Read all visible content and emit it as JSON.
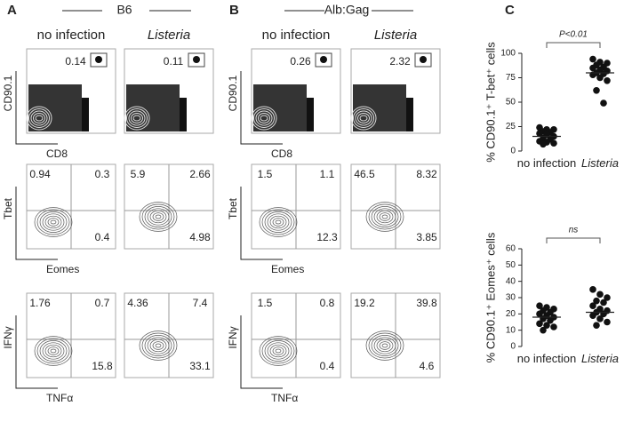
{
  "figure": {
    "panels": [
      {
        "label": "A",
        "title": "B6",
        "columns": [
          "no infection",
          "Listeria"
        ],
        "rows": [
          {
            "y_label": "CD90.1",
            "x_label": "CD8",
            "values": [
              [
                0.14
              ],
              [
                0.11
              ]
            ]
          },
          {
            "y_label": "Tbet",
            "x_label": "Eomes",
            "values": [
              [
                0.94,
                0.3,
                0.4
              ],
              [
                5.9,
                2.66,
                4.98
              ]
            ]
          },
          {
            "y_label": "IFNγ",
            "x_label": "TNFα",
            "values": [
              [
                1.76,
                0.7,
                15.8
              ],
              [
                4.36,
                7.4,
                33.1
              ]
            ]
          }
        ]
      },
      {
        "label": "B",
        "title": "Alb:Gag",
        "columns": [
          "no infection",
          "Listeria"
        ],
        "rows": [
          {
            "y_label": "CD90.1",
            "x_label": "CD8",
            "values": [
              [
                0.26
              ],
              [
                2.32
              ]
            ]
          },
          {
            "y_label": "Tbet",
            "x_label": "Eomes",
            "values": [
              [
                1.5,
                1.1,
                12.3
              ],
              [
                46.5,
                8.32,
                3.85
              ]
            ]
          },
          {
            "y_label": "IFNγ",
            "x_label": "TNFα",
            "values": [
              [
                1.5,
                0.8,
                0.4
              ],
              [
                19.2,
                39.8,
                4.6
              ]
            ]
          }
        ]
      }
    ],
    "chart_label": "C"
  },
  "chart_data": [
    {
      "type": "scatter",
      "y_label": "% CD90.1⁺ T-bet⁺ cells",
      "categories": [
        "no infection",
        "Listeria"
      ],
      "color": "#111111",
      "annotation": "P<0.01",
      "ylim": [
        0,
        100
      ],
      "yticks": [
        0,
        25,
        50,
        75,
        100
      ],
      "groups": [
        {
          "values": [
            24,
            22,
            22,
            20,
            19,
            18,
            17,
            15,
            13,
            12,
            10,
            9,
            8,
            7
          ],
          "mean": 15
        },
        {
          "values": [
            94,
            91,
            90,
            88,
            86,
            85,
            83,
            82,
            80,
            79,
            78,
            75,
            72,
            62,
            49
          ],
          "mean": 80
        }
      ]
    },
    {
      "type": "scatter",
      "y_label": "% CD90.1⁺ Eomes⁺ cells",
      "categories": [
        "no infection",
        "Listeria"
      ],
      "color": "#111111",
      "annotation": "ns",
      "ylim": [
        0,
        60
      ],
      "yticks": [
        0,
        10,
        20,
        30,
        40,
        50,
        60
      ],
      "groups": [
        {
          "values": [
            25,
            24,
            23,
            22,
            21,
            20,
            19,
            18,
            17,
            16,
            14,
            13,
            12,
            10
          ],
          "mean": 18
        },
        {
          "values": [
            35,
            32,
            30,
            28,
            27,
            25,
            23,
            22,
            21,
            20,
            19,
            17,
            15,
            13
          ],
          "mean": 21
        }
      ]
    }
  ]
}
